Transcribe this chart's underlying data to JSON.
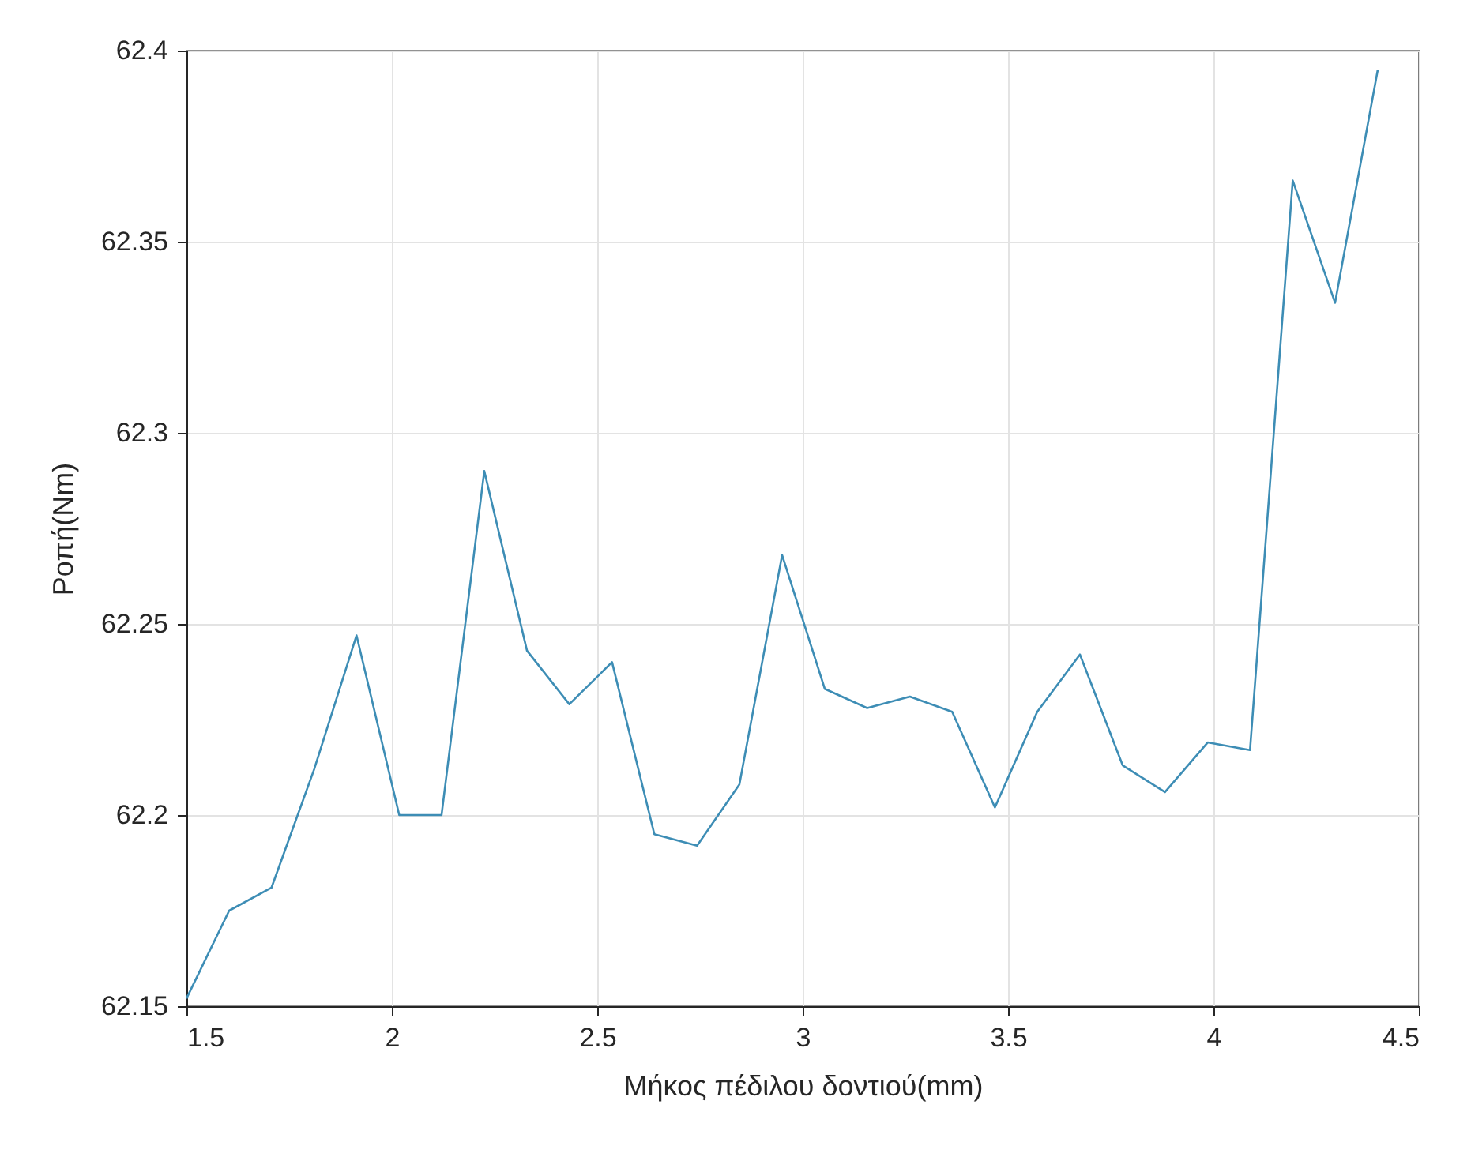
{
  "chart_data": {
    "type": "line",
    "xlabel": "Μήκος πέδιλου δοντιού(mm)",
    "ylabel": "Ροπή(Nm)",
    "x": [
      1.5,
      1.604,
      1.707,
      1.811,
      1.914,
      2.018,
      2.121,
      2.225,
      2.329,
      2.432,
      2.536,
      2.639,
      2.743,
      2.846,
      2.95,
      3.054,
      3.157,
      3.261,
      3.364,
      3.468,
      3.571,
      3.675,
      3.779,
      3.882,
      3.986,
      4.089,
      4.193,
      4.296,
      4.4
    ],
    "series": [
      {
        "color": "#3d8db5",
        "values": [
          62.152,
          62.175,
          62.181,
          62.212,
          62.247,
          62.2,
          62.2,
          62.29,
          62.243,
          62.229,
          62.24,
          62.195,
          62.192,
          62.208,
          62.268,
          62.233,
          62.228,
          62.231,
          62.227,
          62.202,
          62.227,
          62.242,
          62.213,
          62.206,
          62.219,
          62.217,
          62.366,
          62.334,
          62.395
        ]
      }
    ],
    "xlim": [
      1.5,
      4.5
    ],
    "xticks": [
      1.5,
      2,
      2.5,
      3,
      3.5,
      4,
      4.5
    ],
    "ylim": [
      62.15,
      62.4
    ],
    "yticks": [
      62.15,
      62.2,
      62.25,
      62.3,
      62.35,
      62.4
    ],
    "grid": true,
    "marker": "none",
    "line_style": "solid"
  }
}
